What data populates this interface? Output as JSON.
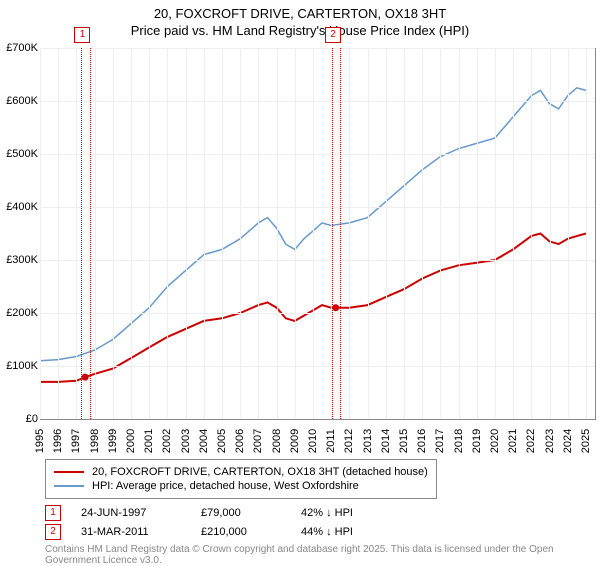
{
  "title": {
    "line1": "20, FOXCROFT DRIVE, CARTERTON, OX18 3HT",
    "line2": "Price paid vs. HM Land Registry's House Price Index (HPI)"
  },
  "chart": {
    "type": "line",
    "xlim": [
      1995,
      2025.5
    ],
    "ylim": [
      0,
      700000
    ],
    "ytick_step": 100000,
    "y_labels": [
      "£0",
      "£100K",
      "£200K",
      "£300K",
      "£400K",
      "£500K",
      "£600K",
      "£700K"
    ],
    "x_labels": [
      "1995",
      "1996",
      "1997",
      "1998",
      "1999",
      "2000",
      "2001",
      "2002",
      "2003",
      "2004",
      "2005",
      "2006",
      "2007",
      "2008",
      "2009",
      "2010",
      "2011",
      "2012",
      "2013",
      "2014",
      "2015",
      "2016",
      "2017",
      "2018",
      "2019",
      "2020",
      "2021",
      "2022",
      "2023",
      "2024",
      "2025"
    ],
    "grid_color": "#eeeeee",
    "axis_color": "#888888",
    "background_color": "#ffffff",
    "series": [
      {
        "name": "20, FOXCROFT DRIVE, CARTERTON, OX18 3HT (detached house)",
        "color": "#cc0000",
        "width": 2,
        "points": [
          [
            1995.0,
            70000
          ],
          [
            1996.0,
            70000
          ],
          [
            1997.0,
            72000
          ],
          [
            1997.5,
            79000
          ],
          [
            1998.0,
            85000
          ],
          [
            1999.0,
            95000
          ],
          [
            2000.0,
            115000
          ],
          [
            2001.0,
            135000
          ],
          [
            2002.0,
            155000
          ],
          [
            2003.0,
            170000
          ],
          [
            2004.0,
            185000
          ],
          [
            2005.0,
            190000
          ],
          [
            2006.0,
            200000
          ],
          [
            2007.0,
            215000
          ],
          [
            2007.5,
            220000
          ],
          [
            2008.0,
            210000
          ],
          [
            2008.5,
            190000
          ],
          [
            2009.0,
            185000
          ],
          [
            2009.5,
            195000
          ],
          [
            2010.0,
            205000
          ],
          [
            2010.5,
            215000
          ],
          [
            2011.0,
            210000
          ],
          [
            2012.0,
            210000
          ],
          [
            2013.0,
            215000
          ],
          [
            2014.0,
            230000
          ],
          [
            2015.0,
            245000
          ],
          [
            2016.0,
            265000
          ],
          [
            2017.0,
            280000
          ],
          [
            2018.0,
            290000
          ],
          [
            2019.0,
            295000
          ],
          [
            2020.0,
            300000
          ],
          [
            2021.0,
            320000
          ],
          [
            2022.0,
            345000
          ],
          [
            2022.5,
            350000
          ],
          [
            2023.0,
            335000
          ],
          [
            2023.5,
            330000
          ],
          [
            2024.0,
            340000
          ],
          [
            2024.5,
            345000
          ],
          [
            2025.0,
            350000
          ]
        ]
      },
      {
        "name": "HPI: Average price, detached house, West Oxfordshire",
        "color": "#6699cc",
        "width": 1.5,
        "points": [
          [
            1995.0,
            110000
          ],
          [
            1996.0,
            112000
          ],
          [
            1997.0,
            118000
          ],
          [
            1998.0,
            130000
          ],
          [
            1999.0,
            150000
          ],
          [
            2000.0,
            180000
          ],
          [
            2001.0,
            210000
          ],
          [
            2002.0,
            250000
          ],
          [
            2003.0,
            280000
          ],
          [
            2004.0,
            310000
          ],
          [
            2005.0,
            320000
          ],
          [
            2006.0,
            340000
          ],
          [
            2007.0,
            370000
          ],
          [
            2007.5,
            380000
          ],
          [
            2008.0,
            360000
          ],
          [
            2008.5,
            330000
          ],
          [
            2009.0,
            320000
          ],
          [
            2009.5,
            340000
          ],
          [
            2010.0,
            355000
          ],
          [
            2010.5,
            370000
          ],
          [
            2011.0,
            365000
          ],
          [
            2012.0,
            370000
          ],
          [
            2013.0,
            380000
          ],
          [
            2014.0,
            410000
          ],
          [
            2015.0,
            440000
          ],
          [
            2016.0,
            470000
          ],
          [
            2017.0,
            495000
          ],
          [
            2018.0,
            510000
          ],
          [
            2019.0,
            520000
          ],
          [
            2020.0,
            530000
          ],
          [
            2021.0,
            570000
          ],
          [
            2022.0,
            610000
          ],
          [
            2022.5,
            620000
          ],
          [
            2023.0,
            595000
          ],
          [
            2023.5,
            585000
          ],
          [
            2024.0,
            610000
          ],
          [
            2024.5,
            625000
          ],
          [
            2025.0,
            620000
          ]
        ]
      }
    ],
    "markers": [
      {
        "num": "1",
        "x": 1997.48,
        "band_width_years": 0.4
      },
      {
        "num": "2",
        "x": 2011.25,
        "band_width_years": 0.4
      }
    ],
    "sale_points": [
      {
        "x": 1997.48,
        "y": 79000,
        "color": "#cc0000"
      },
      {
        "x": 2011.25,
        "y": 210000,
        "color": "#cc0000"
      }
    ]
  },
  "legend": {
    "items": [
      {
        "color": "#cc0000",
        "width": 2,
        "label": "20, FOXCROFT DRIVE, CARTERTON, OX18 3HT (detached house)"
      },
      {
        "color": "#6699cc",
        "width": 1.5,
        "label": "HPI: Average price, detached house, West Oxfordshire"
      }
    ]
  },
  "sales": [
    {
      "num": "1",
      "date": "24-JUN-1997",
      "price": "£79,000",
      "pct": "42% ↓ HPI"
    },
    {
      "num": "2",
      "date": "31-MAR-2011",
      "price": "£210,000",
      "pct": "44% ↓ HPI"
    }
  ],
  "copyright": "Contains HM Land Registry data © Crown copyright and database right 2025. This data is licensed under the Open Government Licence v3.0."
}
